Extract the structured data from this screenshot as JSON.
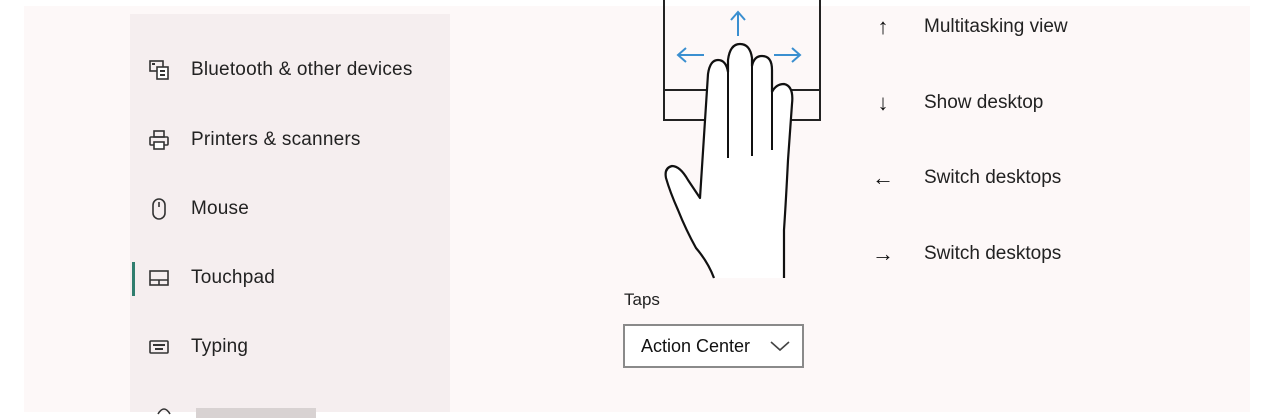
{
  "sidebar": {
    "items": [
      {
        "label": "Bluetooth & other devices",
        "icon": "bluetooth-devices-icon"
      },
      {
        "label": "Printers & scanners",
        "icon": "printer-icon"
      },
      {
        "label": "Mouse",
        "icon": "mouse-icon"
      },
      {
        "label": "Touchpad",
        "icon": "touchpad-icon",
        "selected": true
      },
      {
        "label": "Typing",
        "icon": "keyboard-icon"
      }
    ]
  },
  "gestures": [
    {
      "direction": "up",
      "arrow": "↑",
      "label": "Multitasking view"
    },
    {
      "direction": "down",
      "arrow": "↓",
      "label": "Show desktop"
    },
    {
      "direction": "left",
      "arrow": "←",
      "label": "Switch desktops"
    },
    {
      "direction": "right",
      "arrow": "→",
      "label": "Switch desktops"
    }
  ],
  "taps": {
    "label": "Taps",
    "selected": "Action Center"
  },
  "colors": {
    "accent": "#2f7d6e",
    "arrow_blue": "#3a8fd0",
    "sidebar_bg": "#f5eeef"
  }
}
